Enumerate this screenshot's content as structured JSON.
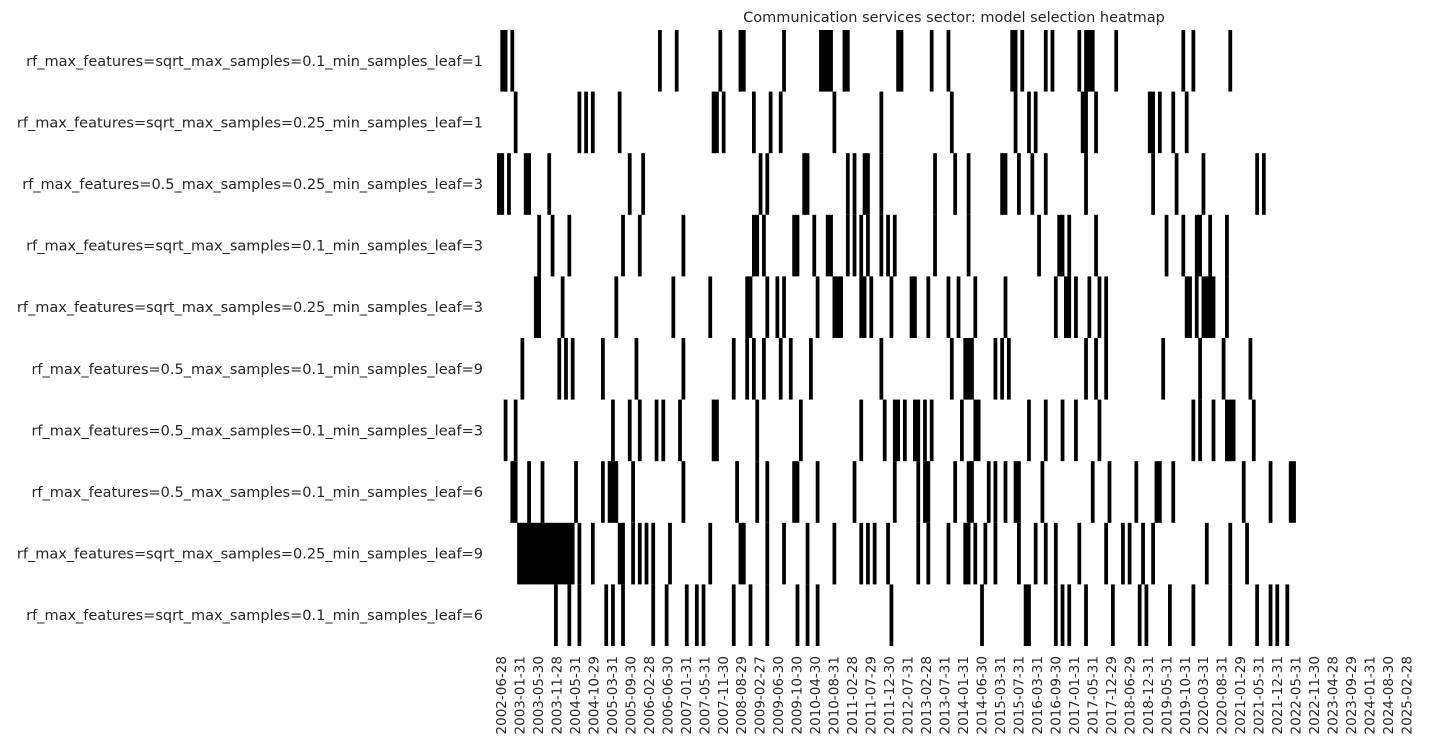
{
  "chart_data": {
    "type": "heatmap",
    "title": "Communication services sector: model selection heatmap",
    "xlabel": "",
    "ylabel": "",
    "colors": {
      "selected": "#000000",
      "not_selected": "#ffffff"
    },
    "legend": "none",
    "grid": false,
    "n_columns": 276,
    "x_tick_labels": [
      "2002-06-28",
      "2003-01-31",
      "2003-05-30",
      "2003-11-28",
      "2004-05-31",
      "2004-10-29",
      "2005-03-31",
      "2005-09-30",
      "2006-02-28",
      "2006-06-30",
      "2007-01-31",
      "2007-05-31",
      "2007-11-30",
      "2008-08-29",
      "2009-02-27",
      "2009-06-30",
      "2009-10-30",
      "2010-04-30",
      "2010-08-31",
      "2011-02-28",
      "2011-07-29",
      "2011-12-30",
      "2012-07-31",
      "2013-02-28",
      "2013-07-31",
      "2014-01-31",
      "2014-06-30",
      "2015-03-31",
      "2015-07-31",
      "2016-03-31",
      "2016-09-30",
      "2017-01-31",
      "2017-05-31",
      "2017-12-29",
      "2018-06-29",
      "2018-12-31",
      "2019-05-31",
      "2019-10-31",
      "2020-03-31",
      "2020-08-31",
      "2021-01-29",
      "2021-05-31",
      "2021-12-31",
      "2022-05-31",
      "2022-11-30",
      "2023-04-28",
      "2023-09-29",
      "2024-01-31",
      "2024-08-30",
      "2025-02-28"
    ],
    "rows": [
      {
        "model": "rf_max_features=sqrt_max_samples=0.1_min_samples_leaf=1",
        "selected_columns": [
          1,
          2,
          4,
          48,
          53,
          66,
          72,
          73,
          85,
          96,
          97,
          98,
          99,
          103,
          104,
          119,
          120,
          129,
          134,
          153,
          154,
          156,
          163,
          165,
          173,
          175,
          176,
          177,
          184,
          204,
          207,
          218
        ]
      },
      {
        "model": "rf_max_features=sqrt_max_samples=0.25_min_samples_leaf=1",
        "selected_columns": [
          5,
          24,
          26,
          28,
          36,
          64,
          65,
          67,
          76,
          81,
          84,
          100,
          114,
          135,
          154,
          158,
          160,
          174,
          175,
          178,
          194,
          195,
          197,
          201,
          205
        ]
      },
      {
        "model": "rf_max_features=0.5_max_samples=0.25_min_samples_leaf=3",
        "selected_columns": [
          0,
          1,
          3,
          8,
          9,
          15,
          39,
          43,
          78,
          80,
          91,
          92,
          104,
          106,
          109,
          110,
          114,
          130,
          136,
          140,
          150,
          151,
          155,
          159,
          163,
          175,
          195,
          202,
          210,
          226,
          228
        ]
      },
      {
        "model": "rf_max_features=sqrt_max_samples=0.1_min_samples_leaf=3",
        "selected_columns": [
          12,
          16,
          21,
          37,
          42,
          55,
          76,
          77,
          79,
          88,
          89,
          94,
          98,
          99,
          104,
          106,
          108,
          110,
          114,
          116,
          118,
          130,
          140,
          161,
          167,
          168,
          170,
          178,
          199,
          204,
          208,
          209,
          212,
          217
        ]
      },
      {
        "model": "rf_max_features=sqrt_max_samples=0.25_min_samples_leaf=3",
        "selected_columns": [
          11,
          12,
          19,
          35,
          52,
          63,
          74,
          75,
          80,
          83,
          85,
          95,
          100,
          101,
          102,
          108,
          109,
          111,
          117,
          123,
          124,
          128,
          134,
          137,
          142,
          151,
          166,
          169,
          170,
          172,
          176,
          179,
          181,
          205,
          206,
          208,
          210,
          211,
          212,
          213,
          217
        ]
      },
      {
        "model": "rf_max_features=0.5_max_samples=0.1_min_samples_leaf=9",
        "selected_columns": [
          7,
          18,
          20,
          22,
          31,
          41,
          55,
          70,
          74,
          76,
          79,
          84,
          87,
          93,
          114,
          135,
          139,
          140,
          141,
          148,
          150,
          152,
          175,
          178,
          181,
          198,
          209,
          216,
          224
        ]
      },
      {
        "model": "rf_max_features=0.5_max_samples=0.1_min_samples_leaf=3",
        "selected_columns": [
          2,
          5,
          34,
          39,
          42,
          47,
          49,
          54,
          64,
          65,
          77,
          90,
          108,
          115,
          118,
          119,
          121,
          124,
          125,
          127,
          129,
          138,
          142,
          143,
          158,
          163,
          168,
          172,
          179,
          207,
          209,
          213,
          217,
          218,
          219,
          225
        ]
      },
      {
        "model": "rf_max_features=0.5_max_samples=0.1_min_samples_leaf=6",
        "selected_columns": [
          4,
          5,
          9,
          13,
          23,
          31,
          33,
          34,
          35,
          40,
          55,
          71,
          77,
          80,
          88,
          89,
          95,
          106,
          118,
          125,
          127,
          128,
          136,
          140,
          141,
          146,
          148,
          151,
          154,
          155,
          162,
          177,
          182,
          190,
          196,
          197,
          201,
          222,
          230,
          236,
          237
        ]
      },
      {
        "model": "rf_max_features=sqrt_max_samples=0.25_min_samples_leaf=9",
        "selected_columns": [
          6,
          7,
          8,
          9,
          10,
          11,
          12,
          13,
          14,
          15,
          16,
          17,
          18,
          19,
          20,
          21,
          22,
          24,
          28,
          36,
          37,
          40,
          42,
          44,
          46,
          51,
          63,
          72,
          73,
          80,
          85,
          92,
          100,
          108,
          110,
          112,
          116,
          125,
          128,
          134,
          139,
          140,
          142,
          145,
          148,
          155,
          160,
          163,
          166,
          173,
          181,
          186,
          188,
          192,
          195,
          211,
          218,
          223
        ]
      },
      {
        "model": "rf_max_features=sqrt_max_samples=0.1_min_samples_leaf=6",
        "selected_columns": [
          17,
          21,
          24,
          32,
          34,
          37,
          46,
          50,
          56,
          59,
          61,
          70,
          75,
          80,
          89,
          92,
          95,
          117,
          144,
          157,
          158,
          166,
          168,
          170,
          175,
          183,
          191,
          193,
          200,
          207,
          218,
          226,
          230,
          232,
          235
        ]
      }
    ]
  }
}
